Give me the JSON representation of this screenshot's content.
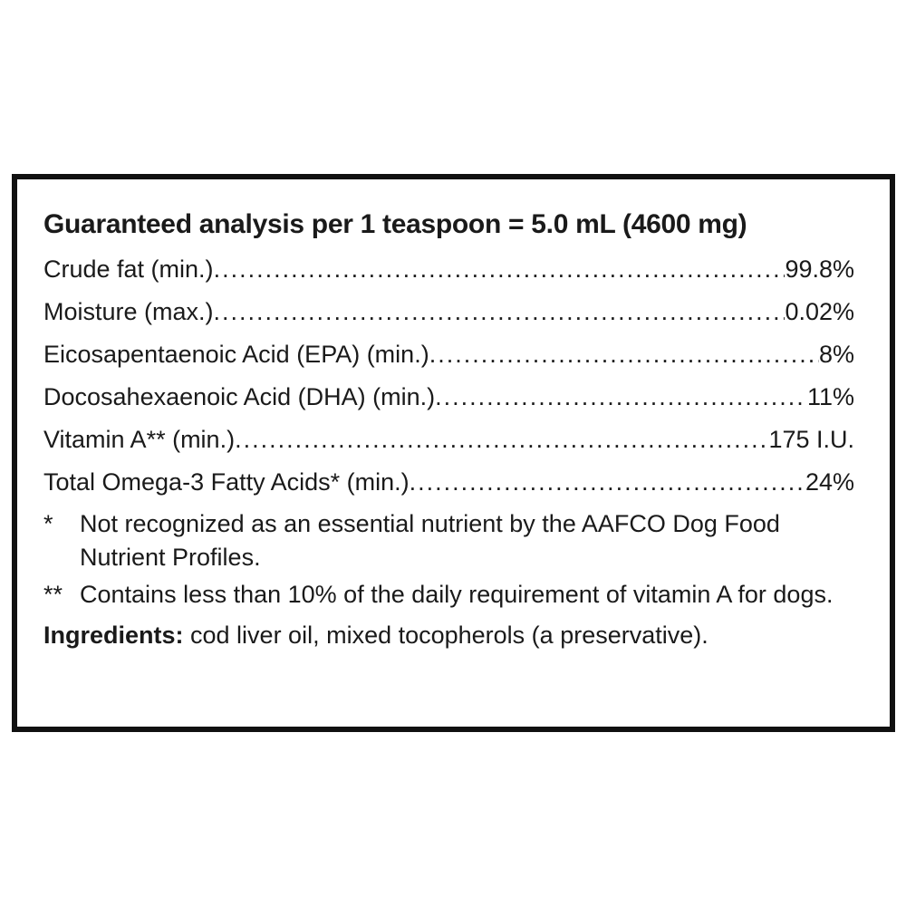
{
  "title": "Guaranteed analysis per 1 teaspoon = 5.0 mL (4600 mg)",
  "rows": [
    {
      "label": "Crude fat (min.) ",
      "value": "99.8%"
    },
    {
      "label": "Moisture (max.)",
      "value": "0.02%"
    },
    {
      "label": "Eicosapentaenoic Acid (EPA) (min.) ",
      "value": "8%"
    },
    {
      "label": "Docosahexaenoic Acid (DHA) (min.) ",
      "value": "11%"
    },
    {
      "label": "Vitamin A** (min.)",
      "value": " 175 I.U."
    },
    {
      "label": "Total Omega-3 Fatty Acids* (min.) ",
      "value": "24%"
    }
  ],
  "notes": [
    {
      "mark": "*",
      "text": "Not recognized as an essential nutrient by the AAFCO Dog Food Nutrient Profiles."
    },
    {
      "mark": "**",
      "text": "Contains less than 10% of the daily requirement of vitamin A for dogs."
    }
  ],
  "ingredients": {
    "label": "Ingredients:",
    "text": " cod liver oil, mixed tocopherols (a preservative)."
  }
}
